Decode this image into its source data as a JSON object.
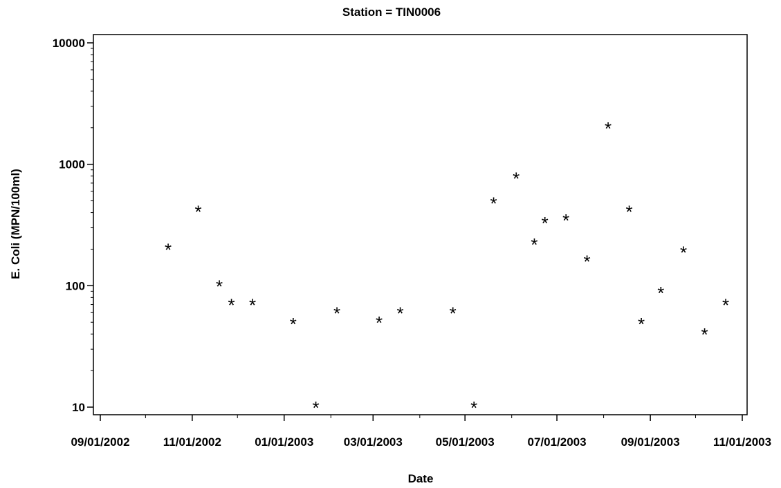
{
  "chart_data": {
    "type": "scatter",
    "title": "Station = TIN0006",
    "xlabel": "Date",
    "ylabel": "E. Coli  (MPN/100ml)",
    "y_scale": "log",
    "ylim": [
      10,
      10000
    ],
    "xlim": [
      "2002-09-01",
      "2003-11-01"
    ],
    "y_ticks": [
      {
        "value": 10,
        "label": "10"
      },
      {
        "value": 100,
        "label": "100"
      },
      {
        "value": 1000,
        "label": "1000"
      },
      {
        "value": 10000,
        "label": "10000"
      }
    ],
    "x_ticks": [
      {
        "value": "2002-09-01",
        "label": "09/01/2002"
      },
      {
        "value": "2002-11-01",
        "label": "11/01/2002"
      },
      {
        "value": "2003-01-01",
        "label": "01/01/2003"
      },
      {
        "value": "2003-03-01",
        "label": "03/01/2003"
      },
      {
        "value": "2003-05-01",
        "label": "05/01/2003"
      },
      {
        "value": "2003-07-01",
        "label": "07/01/2003"
      },
      {
        "value": "2003-09-01",
        "label": "09/01/2003"
      },
      {
        "value": "2003-11-01",
        "label": "11/01/2003"
      }
    ],
    "minor_x_ticks": [
      "2002-10-01",
      "2002-12-01",
      "2003-02-01",
      "2003-04-01",
      "2003-06-01",
      "2003-08-01",
      "2003-10-01"
    ],
    "marker": "*",
    "grid": false,
    "legend": "none",
    "points": [
      {
        "x": "2002-10-16",
        "y": 200
      },
      {
        "x": "2002-11-05",
        "y": 410
      },
      {
        "x": "2002-11-19",
        "y": 100
      },
      {
        "x": "2002-11-27",
        "y": 70
      },
      {
        "x": "2002-12-11",
        "y": 70
      },
      {
        "x": "2003-01-07",
        "y": 49
      },
      {
        "x": "2003-01-22",
        "y": 10
      },
      {
        "x": "2003-02-05",
        "y": 60
      },
      {
        "x": "2003-03-05",
        "y": 50
      },
      {
        "x": "2003-03-19",
        "y": 60
      },
      {
        "x": "2003-04-23",
        "y": 60
      },
      {
        "x": "2003-05-07",
        "y": 10
      },
      {
        "x": "2003-05-20",
        "y": 480
      },
      {
        "x": "2003-06-04",
        "y": 770
      },
      {
        "x": "2003-06-16",
        "y": 220
      },
      {
        "x": "2003-06-23",
        "y": 330
      },
      {
        "x": "2003-07-07",
        "y": 350
      },
      {
        "x": "2003-07-21",
        "y": 160
      },
      {
        "x": "2003-08-04",
        "y": 2000
      },
      {
        "x": "2003-08-18",
        "y": 410
      },
      {
        "x": "2003-08-26",
        "y": 49
      },
      {
        "x": "2003-09-08",
        "y": 88
      },
      {
        "x": "2003-09-23",
        "y": 190
      },
      {
        "x": "2003-10-07",
        "y": 40
      },
      {
        "x": "2003-10-21",
        "y": 70
      }
    ]
  }
}
